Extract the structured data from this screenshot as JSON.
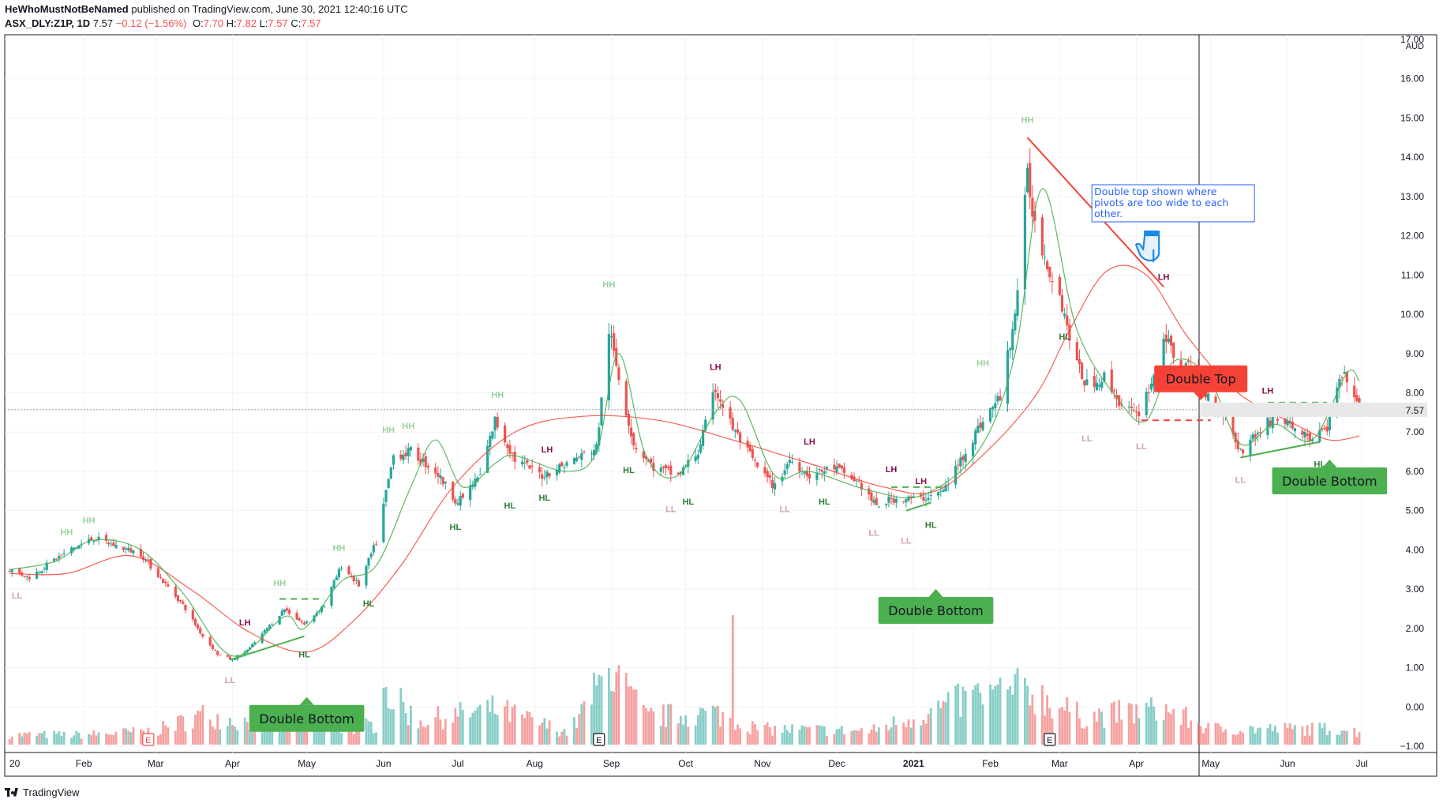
{
  "header": {
    "author": "HeWhoMustNotBeNamed",
    "published": "published on TradingView.com, June 30, 2021 12:40:16 UTC",
    "symbol": "ASX_DLY:Z1P, 1D",
    "last": "7.57",
    "change": "−0.12 (−1.56%)",
    "o_label": "O:",
    "o": "7.70",
    "h_label": "H:",
    "h": "7.82",
    "l_label": "L:",
    "l": "7.57",
    "c_label": "C:",
    "c": "7.57"
  },
  "footer": {
    "brand": "TradingView"
  },
  "colors": {
    "up": "#26a69a",
    "down": "#ef5350",
    "green_label": "#4caf50",
    "red_label": "#f44336",
    "ma_fast": "#4caf50",
    "ma_slow": "#f44336",
    "pivot_lh": "#880e4f"
  },
  "chart_data": {
    "type": "candlestick",
    "currency": "AUD",
    "ylim": [
      -1.0,
      17.0
    ],
    "y_ticks": [
      "17.00",
      "16.00",
      "15.00",
      "14.00",
      "13.00",
      "12.00",
      "11.00",
      "10.00",
      "9.00",
      "8.00",
      "7.00",
      "6.00",
      "5.00",
      "4.00",
      "3.00",
      "2.00",
      "1.00",
      "0.00",
      "−1.00"
    ],
    "last_price": "7.57",
    "x_ticks": [
      "20",
      "Feb",
      "Mar",
      "Apr",
      "May",
      "Jun",
      "Jul",
      "Aug",
      "Sep",
      "Oct",
      "Nov",
      "Dec",
      "2021",
      "Feb",
      "Mar",
      "Apr",
      "May",
      "Jun",
      "Jul"
    ],
    "close_path": [
      [
        "2020-01-02",
        3.5
      ],
      [
        "2020-01-10",
        3.3
      ],
      [
        "2020-01-20",
        3.75
      ],
      [
        "2020-01-28",
        4.05
      ],
      [
        "2020-02-05",
        4.3
      ],
      [
        "2020-02-14",
        4.1
      ],
      [
        "2020-02-24",
        3.9
      ],
      [
        "2020-03-04",
        3.2
      ],
      [
        "2020-03-12",
        2.6
      ],
      [
        "2020-03-20",
        1.8
      ],
      [
        "2020-03-26",
        1.35
      ],
      [
        "2020-04-01",
        1.2
      ],
      [
        "2020-04-08",
        1.5
      ],
      [
        "2020-04-15",
        2.0
      ],
      [
        "2020-04-22",
        2.5
      ],
      [
        "2020-04-30",
        2.1
      ],
      [
        "2020-05-08",
        2.6
      ],
      [
        "2020-05-15",
        3.6
      ],
      [
        "2020-05-22",
        3.1
      ],
      [
        "2020-05-29",
        4.2
      ],
      [
        "2020-06-05",
        6.4
      ],
      [
        "2020-06-12",
        6.5
      ],
      [
        "2020-06-22",
        6.0
      ],
      [
        "2020-07-01",
        5.2
      ],
      [
        "2020-07-10",
        5.9
      ],
      [
        "2020-07-16",
        7.3
      ],
      [
        "2020-07-24",
        6.3
      ],
      [
        "2020-08-04",
        5.9
      ],
      [
        "2020-08-14",
        6.2
      ],
      [
        "2020-08-26",
        6.6
      ],
      [
        "2020-08-31",
        9.6
      ],
      [
        "2020-09-04",
        8.4
      ],
      [
        "2020-09-10",
        6.7
      ],
      [
        "2020-09-18",
        6.1
      ],
      [
        "2020-09-28",
        5.9
      ],
      [
        "2020-10-06",
        6.5
      ],
      [
        "2020-10-13",
        8.1
      ],
      [
        "2020-10-20",
        7.1
      ],
      [
        "2020-10-30",
        6.1
      ],
      [
        "2020-11-06",
        5.6
      ],
      [
        "2020-11-12",
        6.3
      ],
      [
        "2020-11-20",
        5.9
      ],
      [
        "2020-11-30",
        6.1
      ],
      [
        "2020-12-10",
        5.7
      ],
      [
        "2020-12-17",
        5.1
      ],
      [
        "2020-12-23",
        5.3
      ],
      [
        "2021-01-04",
        5.3
      ],
      [
        "2021-01-13",
        5.5
      ],
      [
        "2021-01-21",
        6.4
      ],
      [
        "2021-01-28",
        7.2
      ],
      [
        "2021-02-05",
        7.9
      ],
      [
        "2021-02-11",
        10.0
      ],
      [
        "2021-02-16",
        13.5
      ],
      [
        "2021-02-19",
        12.3
      ],
      [
        "2021-02-24",
        11.3
      ],
      [
        "2021-03-01",
        10.5
      ],
      [
        "2021-03-08",
        8.7
      ],
      [
        "2021-03-12",
        8.2
      ],
      [
        "2021-03-19",
        8.4
      ],
      [
        "2021-03-26",
        7.7
      ],
      [
        "2021-04-01",
        7.4
      ],
      [
        "2021-04-08",
        8.4
      ],
      [
        "2021-04-12",
        9.5
      ],
      [
        "2021-04-16",
        8.9
      ],
      [
        "2021-04-23",
        8.6
      ],
      [
        "2021-04-30",
        7.9
      ],
      [
        "2021-05-07",
        7.4
      ],
      [
        "2021-05-13",
        6.5
      ],
      [
        "2021-05-20",
        7.0
      ],
      [
        "2021-05-27",
        7.4
      ],
      [
        "2021-06-04",
        7.1
      ],
      [
        "2021-06-11",
        6.8
      ],
      [
        "2021-06-17",
        7.1
      ],
      [
        "2021-06-22",
        8.3
      ],
      [
        "2021-06-25",
        8.4
      ],
      [
        "2021-06-30",
        7.57
      ]
    ],
    "volume_path": [
      [
        "2020-01-02",
        0.25
      ],
      [
        "2020-02-01",
        0.25
      ],
      [
        "2020-03-01",
        0.35
      ],
      [
        "2020-03-20",
        0.75
      ],
      [
        "2020-04-15",
        0.5
      ],
      [
        "2020-05-15",
        0.4
      ],
      [
        "2020-05-29",
        0.5
      ],
      [
        "2020-06-01",
        1.4
      ],
      [
        "2020-06-15",
        0.6
      ],
      [
        "2020-07-16",
        0.9
      ],
      [
        "2020-08-15",
        0.3
      ],
      [
        "2020-08-31",
        1.9
      ],
      [
        "2020-09-15",
        0.7
      ],
      [
        "2020-10-13",
        0.8
      ],
      [
        "2020-10-30",
        0.4
      ],
      [
        "2020-12-15",
        0.35
      ],
      [
        "2021-01-25",
        1.2
      ],
      [
        "2021-02-16",
        1.4
      ],
      [
        "2021-03-10",
        0.7
      ],
      [
        "2021-04-12",
        0.9
      ],
      [
        "2021-05-01",
        0.4
      ],
      [
        "2021-06-24",
        0.4
      ],
      [
        "2021-06-30",
        0.3
      ]
    ],
    "volume_spikes": [
      [
        "2020-10-20",
        3.3
      ],
      [
        "2020-08-31",
        1.95
      ],
      [
        "2020-06-01",
        1.45
      ],
      [
        "2021-02-16",
        1.5
      ],
      [
        "2021-01-25",
        1.4
      ]
    ],
    "fast_ma": [
      [
        "2020-01-02",
        3.5
      ],
      [
        "2020-01-20",
        3.7
      ],
      [
        "2020-02-05",
        4.25
      ],
      [
        "2020-02-24",
        4.0
      ],
      [
        "2020-03-12",
        2.9
      ],
      [
        "2020-04-01",
        1.3
      ],
      [
        "2020-04-22",
        2.3
      ],
      [
        "2020-04-30",
        2.0
      ],
      [
        "2020-05-15",
        3.2
      ],
      [
        "2020-05-29",
        3.6
      ],
      [
        "2020-06-12",
        5.6
      ],
      [
        "2020-06-22",
        6.8
      ],
      [
        "2020-07-03",
        5.6
      ],
      [
        "2020-07-16",
        6.2
      ],
      [
        "2020-07-24",
        6.4
      ],
      [
        "2020-08-14",
        6.0
      ],
      [
        "2020-08-26",
        6.5
      ],
      [
        "2020-09-04",
        9.0
      ],
      [
        "2020-09-15",
        6.4
      ],
      [
        "2020-09-28",
        5.9
      ],
      [
        "2020-10-13",
        7.5
      ],
      [
        "2020-10-23",
        7.8
      ],
      [
        "2020-11-06",
        5.9
      ],
      [
        "2020-11-20",
        6.0
      ],
      [
        "2020-12-15",
        5.5
      ],
      [
        "2021-01-05",
        5.4
      ],
      [
        "2021-01-28",
        6.6
      ],
      [
        "2021-02-11",
        9.0
      ],
      [
        "2021-02-22",
        13.2
      ],
      [
        "2021-03-08",
        9.6
      ],
      [
        "2021-03-25",
        7.8
      ],
      [
        "2021-04-05",
        7.3
      ],
      [
        "2021-04-16",
        8.8
      ],
      [
        "2021-04-30",
        8.4
      ],
      [
        "2021-05-13",
        6.7
      ],
      [
        "2021-05-27",
        7.2
      ],
      [
        "2021-06-11",
        6.8
      ],
      [
        "2021-06-25",
        8.5
      ],
      [
        "2021-06-30",
        8.3
      ]
    ],
    "slow_ma": [
      [
        "2020-01-02",
        3.4
      ],
      [
        "2020-01-25",
        3.4
      ],
      [
        "2020-02-20",
        3.85
      ],
      [
        "2020-03-15",
        3.0
      ],
      [
        "2020-04-08",
        1.9
      ],
      [
        "2020-05-01",
        1.4
      ],
      [
        "2020-05-20",
        2.2
      ],
      [
        "2020-06-08",
        3.6
      ],
      [
        "2020-06-29",
        5.6
      ],
      [
        "2020-07-24",
        7.0
      ],
      [
        "2020-08-20",
        7.4
      ],
      [
        "2020-09-20",
        7.3
      ],
      [
        "2020-10-20",
        6.8
      ],
      [
        "2020-11-20",
        6.2
      ],
      [
        "2020-12-20",
        5.6
      ],
      [
        "2021-01-10",
        5.5
      ],
      [
        "2021-02-01",
        6.6
      ],
      [
        "2021-02-20",
        8.0
      ],
      [
        "2021-03-05",
        9.6
      ],
      [
        "2021-03-20",
        11.1
      ],
      [
        "2021-04-05",
        11.0
      ],
      [
        "2021-04-22",
        9.4
      ],
      [
        "2021-05-12",
        8.0
      ],
      [
        "2021-06-04",
        7.2
      ],
      [
        "2021-06-18",
        6.8
      ],
      [
        "2021-06-30",
        6.9
      ]
    ],
    "pivots": [
      {
        "label": "LL",
        "date": "2020-01-05",
        "y": 3.0,
        "kind": "low-faded"
      },
      {
        "label": "HH",
        "date": "2020-01-25",
        "y": 4.3,
        "kind": "high-faded"
      },
      {
        "label": "HH",
        "date": "2020-02-03",
        "y": 4.6,
        "kind": "high-faded"
      },
      {
        "label": "LL",
        "date": "2020-03-31",
        "y": 0.85,
        "kind": "low-faded"
      },
      {
        "label": "LH",
        "date": "2020-04-06",
        "y": 2.0,
        "kind": "high-strong"
      },
      {
        "label": "HH",
        "date": "2020-04-20",
        "y": 3.0,
        "kind": "high-faded"
      },
      {
        "label": "HL",
        "date": "2020-04-30",
        "y": 1.5,
        "kind": "low-strong"
      },
      {
        "label": "HH",
        "date": "2020-05-14",
        "y": 3.9,
        "kind": "high-faded"
      },
      {
        "label": "HL",
        "date": "2020-05-26",
        "y": 2.8,
        "kind": "low-strong"
      },
      {
        "label": "HH",
        "date": "2020-06-03",
        "y": 6.9,
        "kind": "high-faded"
      },
      {
        "label": "HH",
        "date": "2020-06-11",
        "y": 7.0,
        "kind": "high-faded"
      },
      {
        "label": "HL",
        "date": "2020-06-30",
        "y": 4.75,
        "kind": "low-strong"
      },
      {
        "label": "HH",
        "date": "2020-07-17",
        "y": 7.8,
        "kind": "high-faded"
      },
      {
        "label": "HL",
        "date": "2020-07-22",
        "y": 5.3,
        "kind": "low-strong"
      },
      {
        "label": "LH",
        "date": "2020-08-06",
        "y": 6.4,
        "kind": "high-strong"
      },
      {
        "label": "HL",
        "date": "2020-08-05",
        "y": 5.5,
        "kind": "low-strong"
      },
      {
        "label": "HH",
        "date": "2020-08-31",
        "y": 10.6,
        "kind": "high-faded"
      },
      {
        "label": "HL",
        "date": "2020-09-08",
        "y": 6.2,
        "kind": "low-strong"
      },
      {
        "label": "LL",
        "date": "2020-09-25",
        "y": 5.2,
        "kind": "low-faded"
      },
      {
        "label": "HL",
        "date": "2020-10-02",
        "y": 5.4,
        "kind": "low-strong"
      },
      {
        "label": "LH",
        "date": "2020-10-13",
        "y": 8.5,
        "kind": "high-strong"
      },
      {
        "label": "LL",
        "date": "2020-11-10",
        "y": 5.2,
        "kind": "low-faded"
      },
      {
        "label": "LH",
        "date": "2020-11-20",
        "y": 6.6,
        "kind": "high-strong"
      },
      {
        "label": "HL",
        "date": "2020-11-26",
        "y": 5.4,
        "kind": "low-strong"
      },
      {
        "label": "LL",
        "date": "2020-12-16",
        "y": 4.6,
        "kind": "low-faded"
      },
      {
        "label": "LH",
        "date": "2020-12-23",
        "y": 5.9,
        "kind": "high-strong"
      },
      {
        "label": "LL",
        "date": "2020-12-29",
        "y": 4.4,
        "kind": "low-faded"
      },
      {
        "label": "LH",
        "date": "2021-01-04",
        "y": 5.6,
        "kind": "high-strong"
      },
      {
        "label": "HL",
        "date": "2021-01-08",
        "y": 4.8,
        "kind": "low-strong"
      },
      {
        "label": "HH",
        "date": "2021-01-29",
        "y": 8.6,
        "kind": "high-faded"
      },
      {
        "label": "HH",
        "date": "2021-02-16",
        "y": 14.8,
        "kind": "high-faded"
      },
      {
        "label": "HL",
        "date": "2021-03-03",
        "y": 9.6,
        "kind": "low-strong"
      },
      {
        "label": "LL",
        "date": "2021-03-12",
        "y": 7.0,
        "kind": "low-faded"
      },
      {
        "label": "LL",
        "date": "2021-04-03",
        "y": 6.8,
        "kind": "low-faded"
      },
      {
        "label": "LH",
        "date": "2021-04-12",
        "y": 10.8,
        "kind": "high-strong"
      },
      {
        "label": "LL",
        "date": "2021-05-13",
        "y": 5.95,
        "kind": "low-faded"
      },
      {
        "label": "LH",
        "date": "2021-05-24",
        "y": 7.9,
        "kind": "high-strong"
      },
      {
        "label": "HL",
        "date": "2021-06-14",
        "y": 6.35,
        "kind": "low-strong"
      }
    ],
    "trendlines": [
      {
        "from": [
          "2020-03-31",
          1.2
        ],
        "to": [
          "2020-04-30",
          1.8
        ],
        "color": "green",
        "style": "solid"
      },
      {
        "from": [
          "2020-04-20",
          2.75
        ],
        "to": [
          "2020-05-08",
          2.75
        ],
        "color": "green",
        "style": "dashed"
      },
      {
        "from": [
          "2020-12-29",
          5.0
        ],
        "to": [
          "2021-01-08",
          5.2
        ],
        "color": "green",
        "style": "solid"
      },
      {
        "from": [
          "2020-12-23",
          5.6
        ],
        "to": [
          "2021-01-13",
          5.6
        ],
        "color": "green",
        "style": "dashed"
      },
      {
        "from": [
          "2021-02-16",
          14.5
        ],
        "to": [
          "2021-04-12",
          10.7
        ],
        "color": "red",
        "style": "solid"
      },
      {
        "from": [
          "2021-04-03",
          7.3
        ],
        "to": [
          "2021-05-01",
          7.3
        ],
        "color": "red",
        "style": "dashed"
      },
      {
        "from": [
          "2021-05-13",
          6.35
        ],
        "to": [
          "2021-06-14",
          6.75
        ],
        "color": "green",
        "style": "solid"
      },
      {
        "from": [
          "2021-05-24",
          7.75
        ],
        "to": [
          "2021-06-17",
          7.75
        ],
        "color": "green",
        "style": "dashed"
      }
    ],
    "callouts": [
      {
        "text": "Double Bottom",
        "date": "2020-05-01",
        "y": 0.05,
        "color": "green",
        "pointer": "up"
      },
      {
        "text": "Double Bottom",
        "date": "2021-01-10",
        "y": 2.8,
        "color": "green",
        "pointer": "up"
      },
      {
        "text": "Double Top",
        "date": "2021-04-27",
        "y": 8.7,
        "color": "red",
        "pointer": "down"
      },
      {
        "text": "Double Bottom",
        "date": "2021-06-18",
        "y": 6.1,
        "color": "green",
        "pointer": "up"
      }
    ],
    "note": {
      "lines": [
        "Double top shown where",
        "pivots are too wide to each",
        "other."
      ],
      "date": "2021-03-14",
      "y": 13.3,
      "icon": "pointing-hand-icon"
    },
    "earnings_markers": [
      {
        "label": "E",
        "date": "2020-02-27",
        "color": "red"
      },
      {
        "label": "E",
        "date": "2020-08-27",
        "color": "gray"
      },
      {
        "label": "E",
        "date": "2021-02-25",
        "color": "gray"
      }
    ]
  }
}
